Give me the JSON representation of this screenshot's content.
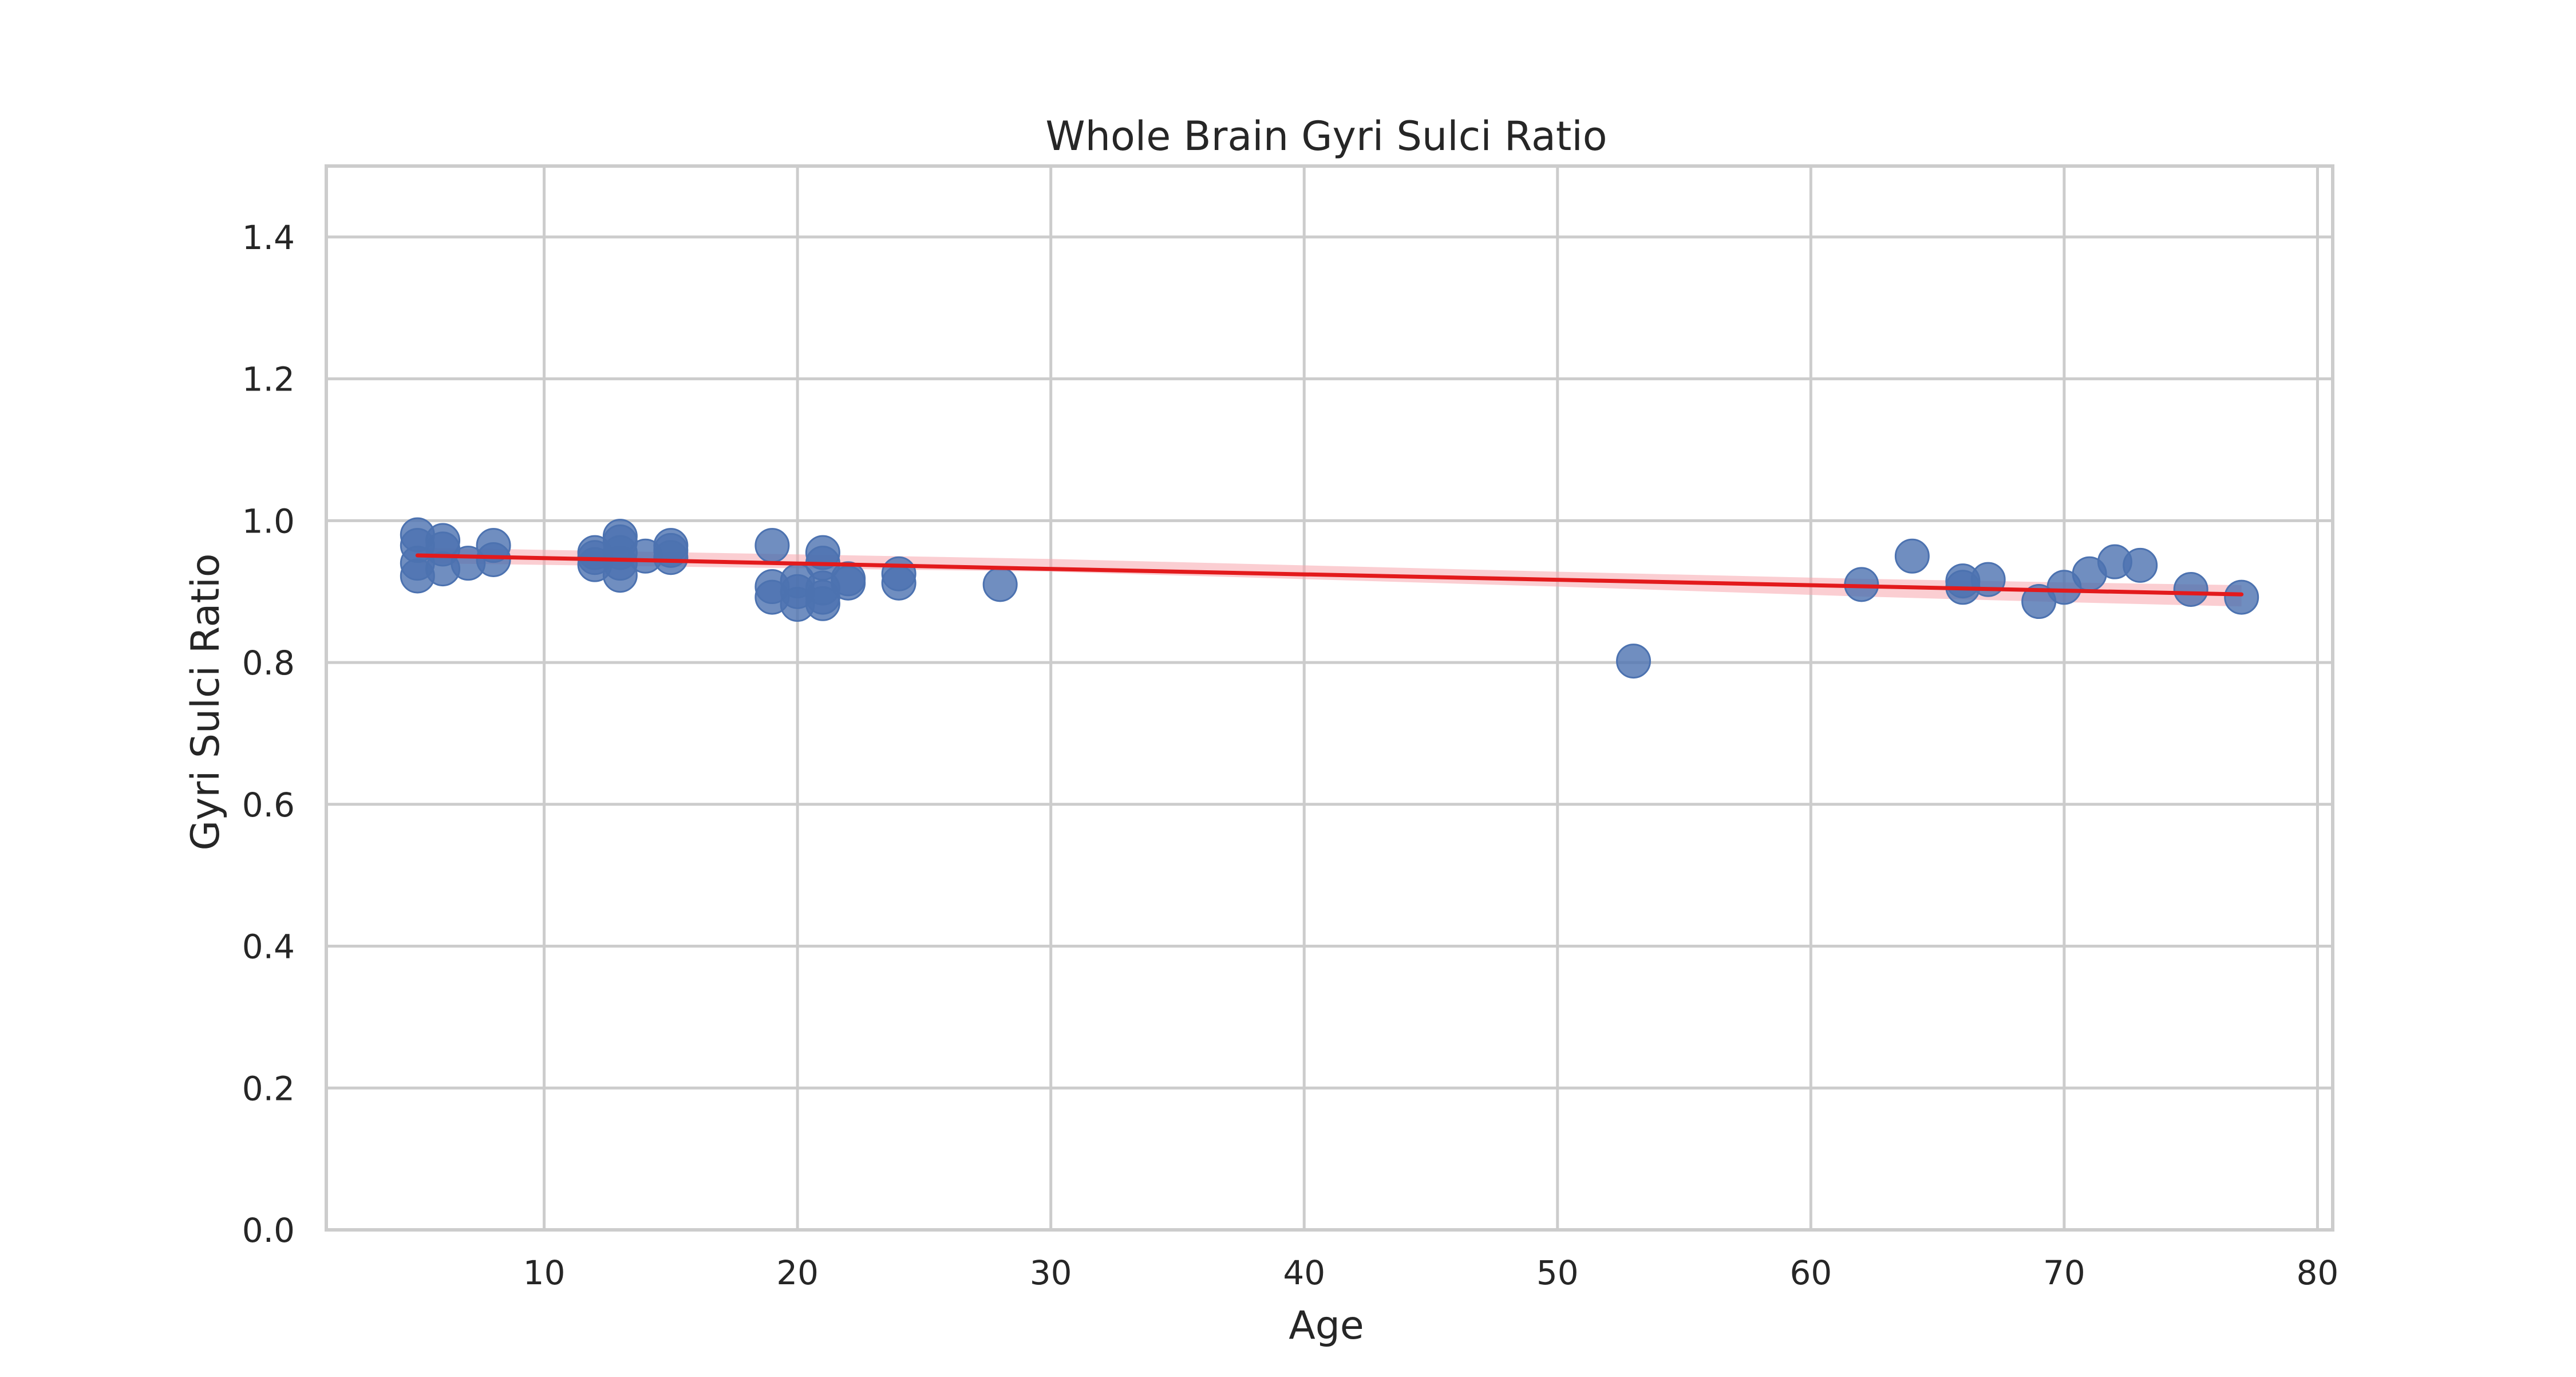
{
  "chart_data": {
    "type": "scatter",
    "title": "Whole Brain Gyri Sulci Ratio",
    "xlabel": "Age",
    "ylabel": "Gyri Sulci Ratio",
    "xlim": [
      1.4,
      80.6
    ],
    "ylim": [
      0.0,
      1.5
    ],
    "xticks": [
      10,
      20,
      30,
      40,
      50,
      60,
      70,
      80
    ],
    "yticks": [
      0.0,
      0.2,
      0.4,
      0.6,
      0.8,
      1.0,
      1.2,
      1.4
    ],
    "xtick_labels": [
      "10",
      "20",
      "30",
      "40",
      "50",
      "60",
      "70",
      "80"
    ],
    "ytick_labels": [
      "0.0",
      "0.2",
      "0.4",
      "0.6",
      "0.8",
      "1.0",
      "1.2",
      "1.4"
    ],
    "grid": true,
    "points": [
      {
        "x": 5,
        "y": 0.98
      },
      {
        "x": 5,
        "y": 0.965
      },
      {
        "x": 5,
        "y": 0.94
      },
      {
        "x": 5,
        "y": 0.922
      },
      {
        "x": 6,
        "y": 0.972
      },
      {
        "x": 6,
        "y": 0.96
      },
      {
        "x": 6,
        "y": 0.932
      },
      {
        "x": 7,
        "y": 0.94
      },
      {
        "x": 8,
        "y": 0.965
      },
      {
        "x": 8,
        "y": 0.945
      },
      {
        "x": 12,
        "y": 0.955
      },
      {
        "x": 12,
        "y": 0.948
      },
      {
        "x": 12,
        "y": 0.938
      },
      {
        "x": 13,
        "y": 0.978
      },
      {
        "x": 13,
        "y": 0.97
      },
      {
        "x": 13,
        "y": 0.955
      },
      {
        "x": 13,
        "y": 0.94
      },
      {
        "x": 13,
        "y": 0.923
      },
      {
        "x": 14,
        "y": 0.95
      },
      {
        "x": 15,
        "y": 0.965
      },
      {
        "x": 15,
        "y": 0.958
      },
      {
        "x": 15,
        "y": 0.948
      },
      {
        "x": 19,
        "y": 0.965
      },
      {
        "x": 19,
        "y": 0.907
      },
      {
        "x": 19,
        "y": 0.892
      },
      {
        "x": 20,
        "y": 0.915
      },
      {
        "x": 20,
        "y": 0.9
      },
      {
        "x": 20,
        "y": 0.882
      },
      {
        "x": 21,
        "y": 0.955
      },
      {
        "x": 21,
        "y": 0.94
      },
      {
        "x": 21,
        "y": 0.905
      },
      {
        "x": 21,
        "y": 0.892
      },
      {
        "x": 21,
        "y": 0.883
      },
      {
        "x": 22,
        "y": 0.918
      },
      {
        "x": 22,
        "y": 0.912
      },
      {
        "x": 24,
        "y": 0.925
      },
      {
        "x": 24,
        "y": 0.912
      },
      {
        "x": 28,
        "y": 0.91
      },
      {
        "x": 53,
        "y": 0.802
      },
      {
        "x": 62,
        "y": 0.91
      },
      {
        "x": 64,
        "y": 0.95
      },
      {
        "x": 66,
        "y": 0.915
      },
      {
        "x": 66,
        "y": 0.906
      },
      {
        "x": 67,
        "y": 0.917
      },
      {
        "x": 69,
        "y": 0.886
      },
      {
        "x": 70,
        "y": 0.906
      },
      {
        "x": 71,
        "y": 0.925
      },
      {
        "x": 72,
        "y": 0.942
      },
      {
        "x": 73,
        "y": 0.937
      },
      {
        "x": 75,
        "y": 0.903
      },
      {
        "x": 77,
        "y": 0.892
      }
    ],
    "regression": {
      "x": [
        5,
        77
      ],
      "y": [
        0.951,
        0.896
      ]
    },
    "confidence_band": {
      "x": [
        5,
        30,
        50,
        62,
        70,
        77
      ],
      "upper": [
        0.962,
        0.946,
        0.928,
        0.918,
        0.913,
        0.909
      ],
      "lower": [
        0.94,
        0.928,
        0.907,
        0.893,
        0.885,
        0.879
      ]
    },
    "colors": {
      "points": "#4c72b0",
      "regression_line": "#e31a1c",
      "confidence_band": "#f7a6ad",
      "grid": "#cccccc",
      "frame": "#cccccc"
    }
  }
}
